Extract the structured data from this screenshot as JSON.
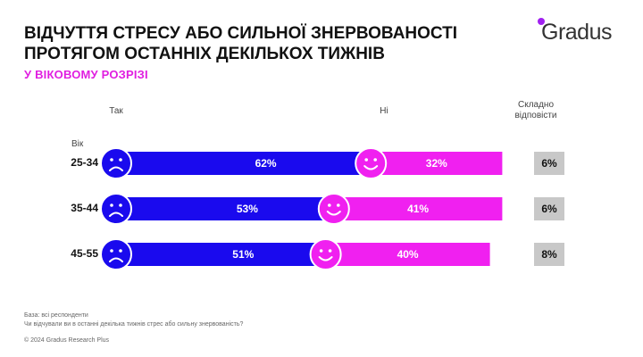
{
  "title_lines": [
    "ВІДЧУТТЯ СТРЕСУ АБО СИЛЬНОЇ ЗНЕРВОВАНОСТІ",
    "ПРОТЯГОМ ОСТАННІХ ДЕКІЛЬКОХ ТИЖНІВ"
  ],
  "subtitle": "У ВІКОВОМУ РОЗРІЗІ",
  "logo": {
    "text": "Gradus",
    "color": "#a020f0"
  },
  "columns": {
    "yes": "Так",
    "no": "Ні",
    "hard_line1": "Складно",
    "hard_line2": "відповісти"
  },
  "age_header": "Вік",
  "colors": {
    "yes": "#1a0aee",
    "no": "#f020f0",
    "hard": "#c8c8c8",
    "face": "#1a0aee"
  },
  "icons": {
    "yes": "sad-face-icon",
    "no": "smiling-face-icon"
  },
  "chart_data": {
    "type": "bar",
    "stacked": true,
    "orientation": "horizontal",
    "categories": [
      "25-34",
      "35-44",
      "45-55"
    ],
    "series": [
      {
        "name": "Так",
        "values": [
          62,
          53,
          51
        ],
        "labels": [
          "62%",
          "53%",
          "51%"
        ]
      },
      {
        "name": "Ні",
        "values": [
          32,
          41,
          40
        ],
        "labels": [
          "32%",
          "41%",
          "40%"
        ]
      },
      {
        "name": "Складно відповісти",
        "values": [
          6,
          6,
          8
        ],
        "labels": [
          "6%",
          "6%",
          "8%"
        ]
      }
    ]
  },
  "footer": {
    "base": "База: всі респонденти",
    "question": "Чи відчували ви в останні декілька тижнів стрес або сильну знервованість?",
    "copyright": "© 2024 Gradus Research Plus"
  }
}
